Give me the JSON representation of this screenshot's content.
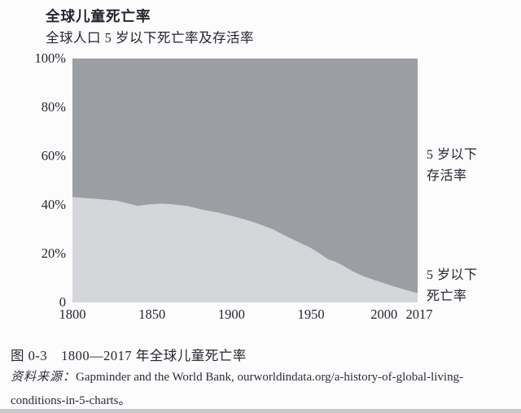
{
  "header": {
    "title": "全球儿童死亡率",
    "subtitle": "全球人口 5 岁以下死亡率及存活率"
  },
  "right_labels": {
    "survival_line1": "5 岁以下",
    "survival_line2": "存活率",
    "mortality_line1": "5 岁以下",
    "mortality_line2": "死亡率"
  },
  "footer": {
    "caption": "图 0-3　1800—2017 年全球儿童死亡率",
    "source_label": "资料来源：",
    "source_text": "Gapminder and the World Bank, ourworldindata.org/a-history-of-global-living- conditions-in-5-charts。"
  },
  "colors": {
    "survival_area": "#9b9ea3",
    "mortality_area": "#d4d6d9",
    "text": "#23252e",
    "background": "#fcfcfd",
    "bottom_edge": "#c9cacc"
  },
  "chart_data": {
    "type": "area",
    "title": "全球人口 5 岁以下死亡率及存活率",
    "xlabel": "",
    "ylabel": "",
    "x_domain": [
      1800,
      2017
    ],
    "y_domain_percent": [
      0,
      100
    ],
    "grid": false,
    "legend_position": "labels-right-of-plot",
    "y_ticks": [
      {
        "percent": 100,
        "label": "100%"
      },
      {
        "percent": 80,
        "label": "80%"
      },
      {
        "percent": 60,
        "label": "60%"
      },
      {
        "percent": 40,
        "label": "40%"
      },
      {
        "percent": 20,
        "label": "20%"
      },
      {
        "percent": 0,
        "label": "0"
      }
    ],
    "x_ticks": [
      {
        "year": 1800,
        "label": "1800"
      },
      {
        "year": 1850,
        "label": "1850"
      },
      {
        "year": 1900,
        "label": "1900"
      },
      {
        "year": 1950,
        "label": "1950"
      },
      {
        "year": 2000,
        "label": "2000"
      },
      {
        "year": 2017,
        "label": "2017"
      }
    ],
    "series": [
      {
        "name": "5 岁以下死亡率",
        "role": "mortality",
        "render": "area-from-zero",
        "unit": "percent",
        "points": [
          [
            1800,
            43.2
          ],
          [
            1808,
            42.8
          ],
          [
            1818,
            42.3
          ],
          [
            1828,
            41.7
          ],
          [
            1835,
            40.6
          ],
          [
            1841,
            39.6
          ],
          [
            1848,
            40.2
          ],
          [
            1856,
            40.5
          ],
          [
            1862,
            40.3
          ],
          [
            1872,
            39.6
          ],
          [
            1882,
            38.0
          ],
          [
            1892,
            36.8
          ],
          [
            1900,
            35.5
          ],
          [
            1909,
            33.9
          ],
          [
            1917,
            32.2
          ],
          [
            1926,
            30.0
          ],
          [
            1934,
            27.3
          ],
          [
            1942,
            24.8
          ],
          [
            1950,
            22.3
          ],
          [
            1957,
            19.4
          ],
          [
            1961,
            17.6
          ],
          [
            1965,
            16.8
          ],
          [
            1969,
            15.5
          ],
          [
            1976,
            12.8
          ],
          [
            1983,
            10.7
          ],
          [
            1992,
            8.7
          ],
          [
            2000,
            7.0
          ],
          [
            2008,
            5.4
          ],
          [
            2017,
            3.8
          ]
        ]
      },
      {
        "name": "5 岁以下存活率",
        "role": "survival",
        "render": "area-from-series-to-100"
      }
    ]
  }
}
